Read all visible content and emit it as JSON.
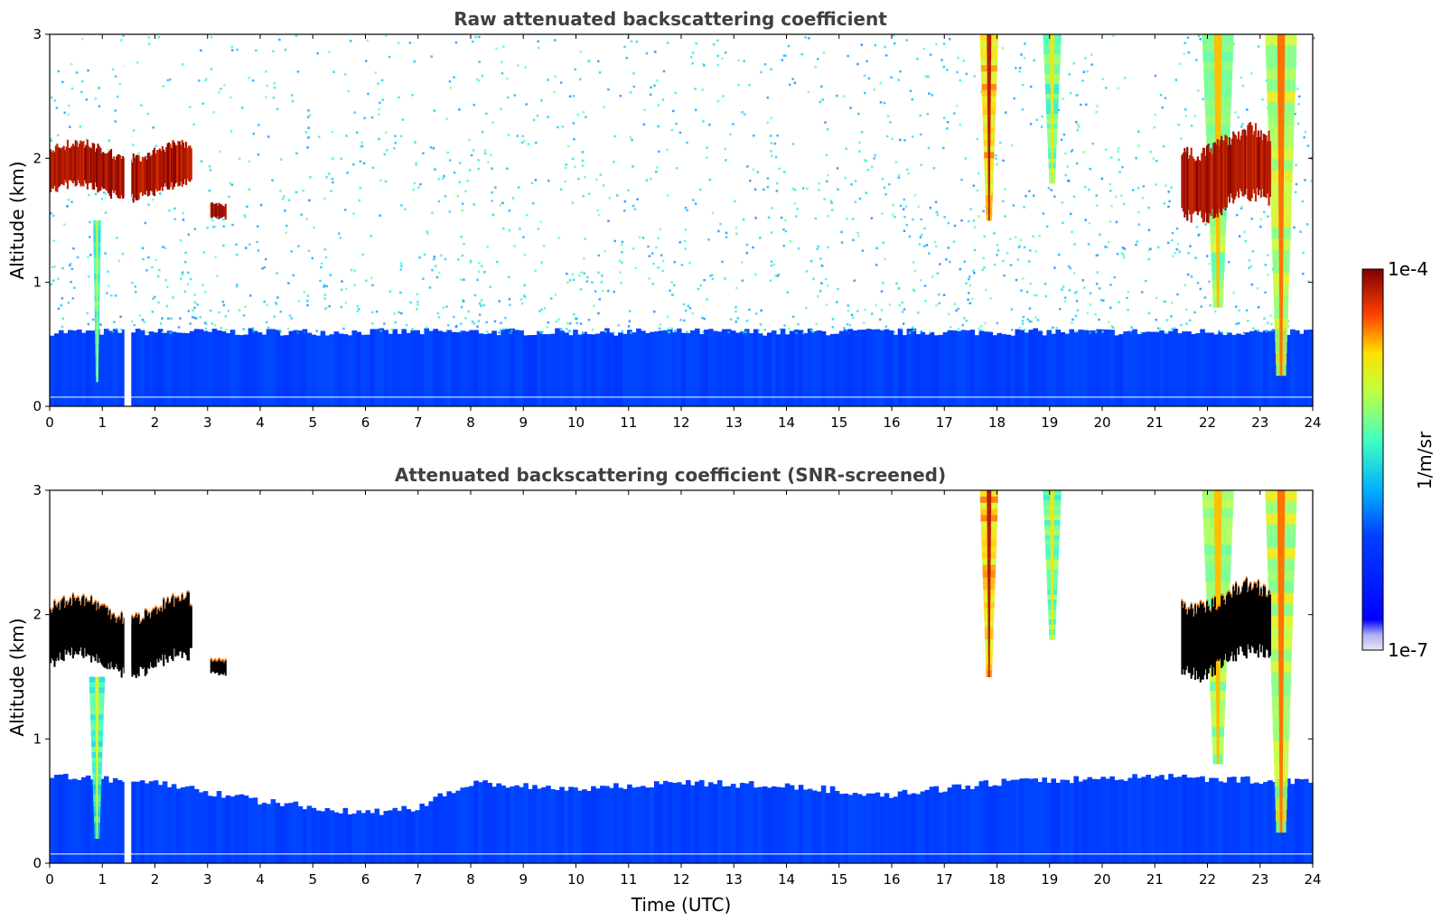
{
  "chart_data": [
    {
      "type": "heatmap",
      "title": "Raw attenuated backscattering coefficient",
      "xlabel": "",
      "ylabel": "Altitude (km)",
      "xlim": [
        0,
        24
      ],
      "ylim": [
        0,
        3
      ],
      "x_ticks": [
        "0",
        "1",
        "2",
        "3",
        "4",
        "5",
        "6",
        "7",
        "8",
        "9",
        "10",
        "11",
        "12",
        "13",
        "14",
        "15",
        "16",
        "17",
        "18",
        "19",
        "20",
        "21",
        "22",
        "23",
        "24"
      ],
      "y_ticks": [
        "0",
        "1",
        "2",
        "3"
      ],
      "features": [
        {
          "kind": "boundary_layer",
          "x_start": 0,
          "x_end": 24,
          "top_km": 0.6,
          "level": 0.2
        },
        {
          "kind": "noise_background",
          "x_start": 0,
          "x_end": 24,
          "level": 0.3
        },
        {
          "kind": "cloud_layer",
          "x_start": 0,
          "x_end": 2.7,
          "base_km": 1.7,
          "top_km": 2.1,
          "level": 1.0
        },
        {
          "kind": "cloud_patch",
          "x_start": 3.05,
          "x_end": 3.35,
          "base_km": 1.52,
          "top_km": 1.65,
          "level": 1.0
        },
        {
          "kind": "data_gap",
          "x_start": 1.42,
          "x_end": 1.55
        },
        {
          "kind": "plume",
          "x": 0.9,
          "top_km": 1.5,
          "bottom_km": 0.2,
          "width_h": 0.15,
          "level": 0.55
        },
        {
          "kind": "plume",
          "x": 17.85,
          "top_km": 3.0,
          "bottom_km": 1.5,
          "width_h": 0.35,
          "level": 0.8
        },
        {
          "kind": "plume",
          "x": 19.05,
          "top_km": 3.0,
          "bottom_km": 1.8,
          "width_h": 0.35,
          "level": 0.6
        },
        {
          "kind": "plume",
          "x": 22.2,
          "top_km": 3.0,
          "bottom_km": 0.8,
          "width_h": 0.6,
          "level": 0.65
        },
        {
          "kind": "plume",
          "x": 23.4,
          "top_km": 3.0,
          "bottom_km": 0.25,
          "width_h": 0.6,
          "level": 0.7
        },
        {
          "kind": "cloud_layer",
          "x_start": 21.5,
          "x_end": 23.2,
          "base_km": 1.55,
          "top_km": 2.2,
          "level": 1.0
        }
      ]
    },
    {
      "type": "heatmap",
      "title": "Attenuated backscattering coefficient (SNR-screened)",
      "xlabel": "Time (UTC)",
      "ylabel": "Altitude (km)",
      "xlim": [
        0,
        24
      ],
      "ylim": [
        0,
        3
      ],
      "x_ticks": [
        "0",
        "1",
        "2",
        "3",
        "4",
        "5",
        "6",
        "7",
        "8",
        "9",
        "10",
        "11",
        "12",
        "13",
        "14",
        "15",
        "16",
        "17",
        "18",
        "19",
        "20",
        "21",
        "22",
        "23",
        "24"
      ],
      "y_ticks": [
        "0",
        "1",
        "2",
        "3"
      ],
      "features": [
        {
          "kind": "boundary_layer",
          "x_start": 0,
          "x_end": 24,
          "top_km_profile": [
            [
              0,
              0.7
            ],
            [
              2,
              0.65
            ],
            [
              4,
              0.5
            ],
            [
              6,
              0.4
            ],
            [
              7,
              0.45
            ],
            [
              8,
              0.65
            ],
            [
              10,
              0.6
            ],
            [
              12,
              0.65
            ],
            [
              14,
              0.62
            ],
            [
              16,
              0.55
            ],
            [
              18,
              0.65
            ],
            [
              21,
              0.7
            ],
            [
              24,
              0.65
            ]
          ],
          "level": 0.2
        },
        {
          "kind": "cloud_layer",
          "x_start": 0,
          "x_end": 2.7,
          "base_km": 1.55,
          "top_km": 2.1,
          "level": 1.0,
          "saturated": true
        },
        {
          "kind": "cloud_patch",
          "x_start": 3.05,
          "x_end": 3.35,
          "base_km": 1.52,
          "top_km": 1.65,
          "level": 1.0,
          "saturated": true
        },
        {
          "kind": "data_gap",
          "x_start": 1.42,
          "x_end": 1.55
        },
        {
          "kind": "plume",
          "x": 0.9,
          "top_km": 1.5,
          "bottom_km": 0.2,
          "width_h": 0.3,
          "level": 0.55
        },
        {
          "kind": "plume",
          "x": 17.85,
          "top_km": 3.0,
          "bottom_km": 1.5,
          "width_h": 0.35,
          "level": 0.8
        },
        {
          "kind": "plume",
          "x": 19.05,
          "top_km": 3.0,
          "bottom_km": 1.8,
          "width_h": 0.35,
          "level": 0.6
        },
        {
          "kind": "plume",
          "x": 22.2,
          "top_km": 3.0,
          "bottom_km": 0.8,
          "width_h": 0.6,
          "level": 0.65
        },
        {
          "kind": "plume",
          "x": 23.4,
          "top_km": 3.0,
          "bottom_km": 0.25,
          "width_h": 0.6,
          "level": 0.7
        },
        {
          "kind": "cloud_layer",
          "x_start": 21.5,
          "x_end": 23.2,
          "base_km": 1.55,
          "top_km": 2.2,
          "level": 1.0,
          "saturated": true
        }
      ]
    }
  ],
  "colorbar": {
    "label": "1/m/sr",
    "min_label": "1e-7",
    "max_label": "1e-4",
    "scale": "log",
    "colormap": "jet"
  }
}
